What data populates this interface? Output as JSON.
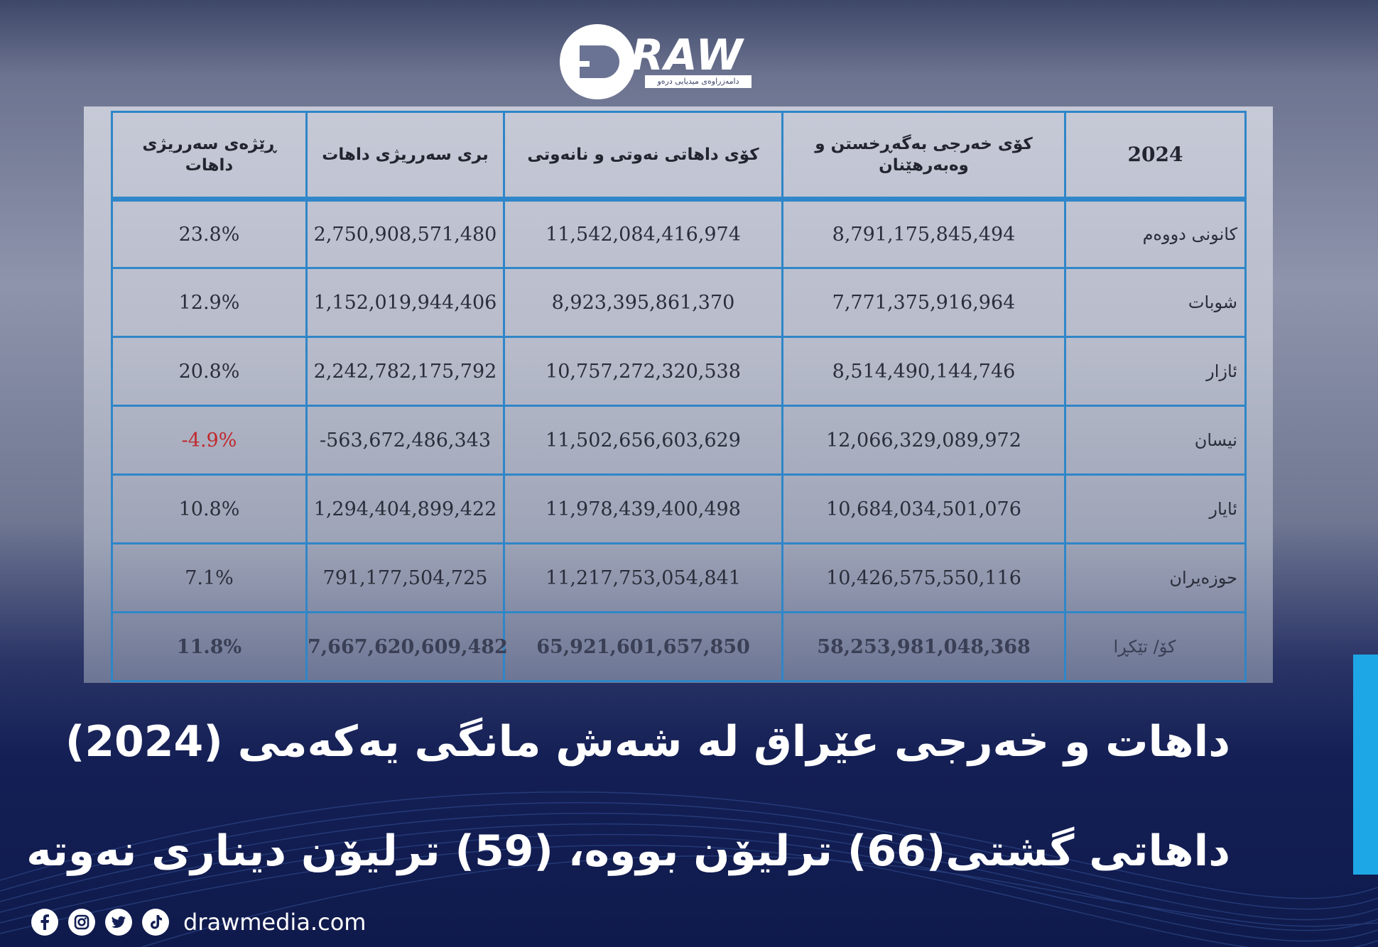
{
  "brand": {
    "name": "RAW",
    "tagline": "دامەزراوەی میدیایی درەو",
    "website": "drawmedia.com",
    "accent_color": "#1ea7e6",
    "social_icons": [
      "facebook-icon",
      "instagram-icon",
      "twitter-icon",
      "tiktok-icon"
    ]
  },
  "table": {
    "headers": {
      "year": "2024",
      "expenses": "کۆی خەرجی بەگەڕخستن و وەبەرهێنان",
      "revenue": "کۆی داهاتی نەوتی و نانەوتی",
      "surplus": "بری سەرریژی داهات",
      "ratio": "ڕێژەی سەرریژی داهات"
    },
    "rows": [
      {
        "month": "کانونی دووەم",
        "expenses": "8,791,175,845,494",
        "revenue": "11,542,084,416,974",
        "surplus": "2,750,908,571,480",
        "ratio": "23.8%"
      },
      {
        "month": "شوبات",
        "expenses": "7,771,375,916,964",
        "revenue": "8,923,395,861,370",
        "surplus": "1,152,019,944,406",
        "ratio": "12.9%"
      },
      {
        "month": "ئازار",
        "expenses": "8,514,490,144,746",
        "revenue": "10,757,272,320,538",
        "surplus": "2,242,782,175,792",
        "ratio": "20.8%"
      },
      {
        "month": "نیسان",
        "expenses": "12,066,329,089,972",
        "revenue": "11,502,656,603,629",
        "surplus": "-563,672,486,343",
        "ratio": "-4.9%"
      },
      {
        "month": "ئایار",
        "expenses": "10,684,034,501,076",
        "revenue": "11,978,439,400,498",
        "surplus": "1,294,404,899,422",
        "ratio": "10.8%"
      },
      {
        "month": "حوزەیران",
        "expenses": "10,426,575,550,116",
        "revenue": "11,217,753,054,841",
        "surplus": "791,177,504,725",
        "ratio": "7.1%"
      }
    ],
    "total": {
      "month": "کۆ/ تێکڕا",
      "expenses": "58,253,981,048,368",
      "revenue": "65,921,601,657,850",
      "surplus": "7,667,620,609,482",
      "ratio": "11.8%"
    },
    "negative_color": "#c0282c"
  },
  "headline": {
    "line1": "داهات و خەرجی عێراق لە شەش مانگی یەکەمی (2024)",
    "line2": "داهاتی گشتی(66) ترلیۆن بووە، (59) ترلیۆن دیناری نەوتە"
  }
}
